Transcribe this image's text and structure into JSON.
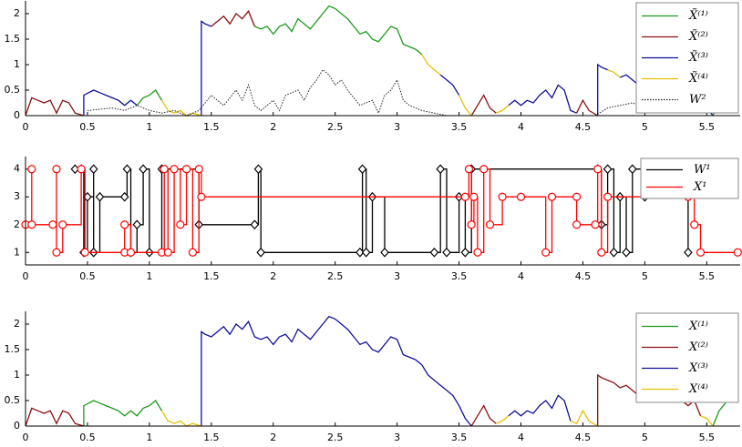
{
  "chart_data": [
    {
      "type": "line",
      "legend": "upper right",
      "xlim": [
        0,
        5.77
      ],
      "ylim": [
        0,
        2.25
      ],
      "xticks": [
        0,
        0.5,
        1,
        1.5,
        2,
        2.5,
        3,
        3.5,
        4,
        4.5,
        5,
        5.5
      ],
      "yticks": [
        0,
        0.5,
        1,
        1.5,
        2
      ],
      "series": [
        {
          "name": "X̃⁽¹⁾",
          "color": "#1a9a1a",
          "linestyle": "solid",
          "x": [
            0.9,
            0.95,
            1.0,
            1.05,
            1.1,
            null,
            1.85,
            1.9,
            1.95,
            2.0,
            2.05,
            2.1,
            2.15,
            2.2,
            2.25,
            2.3,
            2.35,
            2.4,
            2.45,
            2.5,
            2.55,
            2.6,
            2.65,
            2.7,
            2.75,
            2.8,
            2.85,
            2.9,
            2.95,
            3.0,
            3.05,
            3.1,
            3.15,
            3.2,
            null,
            5.55,
            5.6,
            5.65,
            5.7,
            5.75
          ],
          "values": [
            0.2,
            0.35,
            0.4,
            0.5,
            0.3,
            null,
            1.75,
            1.7,
            1.75,
            1.6,
            1.75,
            1.8,
            1.65,
            1.9,
            1.8,
            1.7,
            1.85,
            2.0,
            2.15,
            2.1,
            2.0,
            1.9,
            1.75,
            1.6,
            1.65,
            1.5,
            1.45,
            1.6,
            1.75,
            1.7,
            1.4,
            1.35,
            1.3,
            1.2,
            null,
            0,
            0.3,
            0.45,
            0.6,
            0.6
          ]
        },
        {
          "name": "X̃⁽²⁾",
          "color": "#8b1010",
          "linestyle": "solid",
          "x": [
            0,
            0.05,
            0.1,
            0.15,
            0.2,
            0.25,
            0.3,
            0.35,
            0.4,
            0.47,
            null,
            1.5,
            1.55,
            1.6,
            1.65,
            1.7,
            1.75,
            1.8,
            1.85,
            null,
            3.6,
            3.65,
            3.7,
            3.75,
            3.8,
            null,
            4.45,
            4.5,
            4.55,
            4.62
          ],
          "values": [
            0,
            0.35,
            0.3,
            0.25,
            0.3,
            0.05,
            0.3,
            0.25,
            0.05,
            0,
            null,
            1.75,
            1.85,
            1.95,
            1.8,
            2.0,
            1.9,
            2.05,
            1.75,
            null,
            0,
            0.2,
            0.4,
            0.15,
            0.05,
            null,
            0.05,
            0.3,
            0.1,
            0
          ]
        },
        {
          "name": "X̃⁽³⁾",
          "color": "#10109a",
          "linestyle": "solid",
          "x": [
            0.47,
            0.47,
            0.55,
            0.6,
            0.65,
            0.7,
            0.75,
            0.8,
            0.85,
            0.9,
            null,
            1.42,
            1.42,
            1.45,
            1.5,
            null,
            3.35,
            3.4,
            3.45,
            3.5,
            null,
            3.9,
            3.95,
            4.0,
            4.05,
            4.1,
            4.15,
            4.2,
            4.25,
            4.3,
            4.35,
            4.4,
            4.45,
            null,
            4.62,
            4.62,
            4.65,
            4.7,
            null,
            4.8,
            4.85,
            4.9,
            4.95,
            5.0,
            5.05,
            5.1,
            5.15,
            5.2,
            5.25,
            5.3,
            5.35,
            5.4,
            5.45,
            5.5,
            5.55
          ],
          "values": [
            0,
            0.4,
            0.5,
            0.45,
            0.4,
            0.35,
            0.3,
            0.2,
            0.3,
            0.2,
            null,
            0,
            1.85,
            1.8,
            1.75,
            null,
            0.8,
            0.7,
            0.6,
            0.4,
            null,
            0.2,
            0.3,
            0.2,
            0.3,
            0.25,
            0.4,
            0.5,
            0.35,
            0.6,
            0.5,
            0.1,
            0.05,
            null,
            0,
            1.0,
            0.95,
            0.9,
            null,
            0.75,
            0.8,
            0.7,
            0.6,
            0.75,
            0.7,
            0.6,
            0.65,
            0.5,
            0.55,
            0.5,
            0.4,
            0.5,
            0.2,
            0.15,
            0
          ]
        },
        {
          "name": "X̃⁽⁴⁾",
          "color": "#e8c000",
          "linestyle": "solid",
          "x": [
            1.1,
            1.15,
            1.2,
            1.25,
            1.3,
            1.35,
            1.42,
            null,
            3.2,
            3.25,
            3.3,
            3.35,
            null,
            3.5,
            3.55,
            3.6,
            null,
            3.8,
            3.85,
            3.9,
            null,
            4.7,
            4.75,
            4.8
          ],
          "values": [
            0.3,
            0.1,
            0.05,
            0.1,
            0,
            0.05,
            0,
            null,
            1.2,
            1.0,
            0.9,
            0.8,
            null,
            0.4,
            0.15,
            0,
            null,
            0.05,
            0.1,
            0.2,
            null,
            0.9,
            0.85,
            0.75
          ]
        },
        {
          "name": "W²",
          "color": "#222222",
          "linestyle": "dotted",
          "x": [
            0.5,
            0.7,
            0.8,
            0.9,
            1.0,
            1.1,
            1.2,
            1.3,
            1.4,
            1.5,
            1.6,
            1.7,
            1.75,
            1.8,
            1.85,
            1.9,
            2.0,
            2.05,
            2.1,
            2.2,
            2.25,
            2.3,
            2.35,
            2.4,
            2.45,
            2.5,
            2.55,
            2.6,
            2.7,
            2.8,
            2.85,
            2.9,
            2.95,
            3.0,
            3.05,
            3.1,
            3.2,
            3.3,
            3.4,
            3.6,
            4.6,
            4.7,
            4.9,
            5.0,
            5.2,
            5.3,
            5.5,
            5.75
          ],
          "values": [
            0.1,
            0.15,
            0.1,
            0.2,
            0.1,
            0.05,
            0.1,
            0,
            0.1,
            0.4,
            0.2,
            0.5,
            0.3,
            0.6,
            0.2,
            0.1,
            0.3,
            0.1,
            0.4,
            0.5,
            0.3,
            0.55,
            0.7,
            0.9,
            0.8,
            0.6,
            0.7,
            0.5,
            0.2,
            0.3,
            0.05,
            0.4,
            0.5,
            0.7,
            0.3,
            0.2,
            0.1,
            0.05,
            0,
            0,
            0,
            0.15,
            0.25,
            0.15,
            0.2,
            0.1,
            0.15,
            0.1
          ]
        }
      ]
    },
    {
      "type": "step",
      "legend": "upper right",
      "xlim": [
        0,
        5.77
      ],
      "ylim": [
        0.55,
        4.45
      ],
      "xticks": [
        0,
        0.5,
        1,
        1.5,
        2,
        2.5,
        3,
        3.5,
        4,
        4.5,
        5,
        5.5
      ],
      "yticks": [
        1,
        2,
        3,
        4
      ],
      "series": [
        {
          "name": "W¹",
          "color": "#000000",
          "marker": "diamond",
          "x": [
            0.4,
            0.45,
            0.47,
            0.5,
            0.55,
            0.55,
            0.6,
            0.8,
            0.82,
            0.85,
            0.9,
            0.95,
            1.0,
            1.1,
            1.4,
            1.85,
            1.88,
            1.9,
            2.7,
            2.72,
            2.75,
            2.8,
            2.9,
            3.3,
            3.35,
            3.4,
            3.5,
            3.55,
            3.6,
            4.62,
            4.65,
            4.7,
            4.75,
            4.8,
            4.85,
            4.9,
            5.0,
            5.3,
            5.35
          ],
          "values": [
            4,
            4,
            1,
            3,
            4,
            1,
            3,
            3,
            4,
            1,
            2,
            4,
            1,
            4,
            2,
            2,
            4,
            1,
            1,
            4,
            1,
            3,
            1,
            1,
            4,
            1,
            3,
            1,
            4,
            4,
            2,
            4,
            1,
            3,
            1,
            4,
            3,
            4,
            1
          ]
        },
        {
          "name": "X¹",
          "color": "#ff0000",
          "marker": "circle",
          "x": [
            0,
            0.05,
            0.05,
            0.22,
            0.25,
            0.25,
            0.3,
            0.45,
            0.48,
            0.8,
            0.8,
            0.85,
            1.1,
            1.12,
            1.15,
            1.2,
            1.25,
            1.3,
            1.35,
            1.4,
            1.42,
            3.55,
            3.58,
            3.6,
            3.62,
            3.65,
            3.7,
            3.75,
            3.85,
            4.0,
            4.2,
            4.25,
            4.45,
            4.45,
            4.6,
            4.62,
            4.65,
            4.7,
            5.35,
            5.38,
            5.4,
            5.45,
            5.75
          ],
          "values": [
            2,
            4,
            2,
            2,
            4,
            1,
            2,
            4,
            1,
            1,
            2,
            1,
            1,
            4,
            1,
            4,
            2,
            4,
            1,
            4,
            3,
            3,
            4,
            2,
            3,
            1,
            4,
            2,
            3,
            3,
            1,
            3,
            3,
            2,
            2,
            4,
            1,
            3,
            3,
            4,
            2,
            1,
            1
          ]
        }
      ]
    },
    {
      "type": "line",
      "legend": "upper right",
      "xlim": [
        0,
        5.77
      ],
      "ylim": [
        0,
        2.25
      ],
      "xticks": [
        0,
        0.5,
        1,
        1.5,
        2,
        2.5,
        3,
        3.5,
        4,
        4.5,
        5,
        5.5
      ],
      "yticks": [
        0,
        0.5,
        1,
        1.5,
        2
      ],
      "series": [
        {
          "name": "X⁽¹⁾",
          "color": "#1a9a1a",
          "linestyle": "solid",
          "x": [
            0.47,
            0.47,
            0.55,
            0.6,
            0.65,
            0.7,
            0.75,
            0.8,
            0.85,
            0.9,
            0.95,
            1.0,
            1.05,
            1.1,
            null,
            5.55,
            5.6,
            5.65,
            5.7,
            5.75
          ],
          "values": [
            0,
            0.4,
            0.5,
            0.45,
            0.4,
            0.35,
            0.3,
            0.2,
            0.3,
            0.2,
            0.35,
            0.4,
            0.5,
            0.3,
            null,
            0,
            0.3,
            0.45,
            0.6,
            0.6
          ]
        },
        {
          "name": "X⁽²⁾",
          "color": "#8b1010",
          "linestyle": "solid",
          "x": [
            0,
            0.05,
            0.1,
            0.15,
            0.2,
            0.25,
            0.3,
            0.35,
            0.4,
            0.47,
            null,
            3.6,
            3.65,
            3.7,
            3.75,
            3.8,
            null,
            4.62,
            4.62,
            4.65,
            4.7,
            4.75,
            4.8,
            4.85,
            4.9,
            4.95,
            5.0,
            5.05,
            5.1,
            5.15,
            5.2,
            5.25,
            5.3,
            5.35,
            5.4,
            5.45
          ],
          "values": [
            0,
            0.35,
            0.3,
            0.25,
            0.3,
            0.05,
            0.3,
            0.25,
            0.05,
            0,
            null,
            0,
            0.2,
            0.4,
            0.15,
            0.05,
            null,
            0,
            1.0,
            0.95,
            0.9,
            0.85,
            0.75,
            0.8,
            0.7,
            0.6,
            0.75,
            0.7,
            0.6,
            0.65,
            0.5,
            0.55,
            0.5,
            0.4,
            0.5,
            0.2
          ]
        },
        {
          "name": "X⁽³⁾",
          "color": "#10109a",
          "linestyle": "solid",
          "x": [
            1.42,
            1.42,
            1.45,
            1.5,
            1.55,
            1.6,
            1.65,
            1.7,
            1.75,
            1.8,
            1.85,
            1.9,
            1.95,
            2.0,
            2.05,
            2.1,
            2.15,
            2.2,
            2.25,
            2.3,
            2.35,
            2.4,
            2.45,
            2.5,
            2.55,
            2.6,
            2.65,
            2.7,
            2.75,
            2.8,
            2.85,
            2.9,
            2.95,
            3.0,
            3.05,
            3.1,
            3.15,
            3.2,
            3.25,
            3.3,
            3.35,
            3.4,
            3.45,
            3.5,
            3.55,
            3.6,
            null,
            3.9,
            3.95,
            4.0,
            4.05,
            4.1,
            4.15,
            4.2,
            4.25,
            4.3,
            4.35,
            4.4
          ],
          "values": [
            0,
            1.85,
            1.8,
            1.75,
            1.85,
            1.95,
            1.8,
            2.0,
            1.9,
            2.05,
            1.75,
            1.7,
            1.75,
            1.6,
            1.75,
            1.8,
            1.65,
            1.9,
            1.8,
            1.7,
            1.85,
            2.0,
            2.15,
            2.1,
            2.0,
            1.9,
            1.75,
            1.6,
            1.65,
            1.5,
            1.45,
            1.6,
            1.75,
            1.7,
            1.4,
            1.35,
            1.3,
            1.2,
            1.0,
            0.9,
            0.8,
            0.7,
            0.6,
            0.4,
            0.15,
            0,
            null,
            0.2,
            0.3,
            0.2,
            0.3,
            0.25,
            0.4,
            0.5,
            0.35,
            0.6,
            0.5,
            0.1
          ]
        },
        {
          "name": "X⁽⁴⁾",
          "color": "#e8c000",
          "linestyle": "solid",
          "x": [
            1.1,
            1.15,
            1.2,
            1.25,
            1.3,
            1.35,
            1.42,
            null,
            3.8,
            3.85,
            3.9,
            null,
            4.4,
            4.45,
            4.5,
            4.55,
            4.62,
            null,
            5.45,
            5.5,
            5.55
          ],
          "values": [
            0.3,
            0.1,
            0.05,
            0.1,
            0,
            0.05,
            0,
            null,
            0.05,
            0.1,
            0.2,
            null,
            0.1,
            0.05,
            0.3,
            0.1,
            0,
            null,
            0.2,
            0.15,
            0
          ]
        }
      ]
    }
  ]
}
